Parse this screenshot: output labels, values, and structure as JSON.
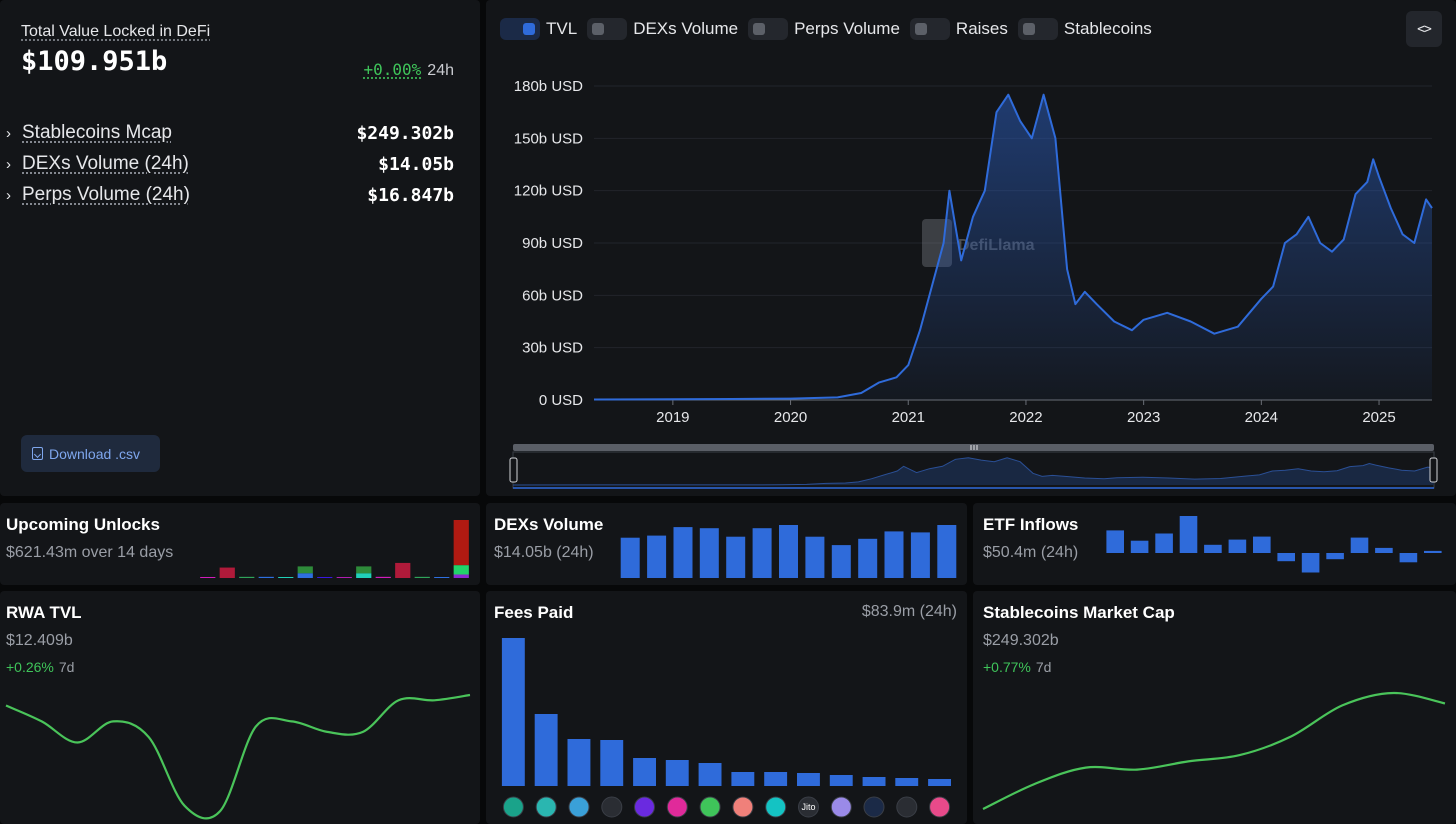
{
  "summary": {
    "title": "Total Value Locked in DeFi",
    "value": "$109.951b",
    "change_pct": "+0.00%",
    "change_period": "24h",
    "metrics": [
      {
        "label": "Stablecoins Mcap",
        "value": "$249.302b"
      },
      {
        "label": "DEXs Volume (24h)",
        "value": "$14.05b"
      },
      {
        "label": "Perps Volume (24h)",
        "value": "$16.847b"
      }
    ],
    "download_label": "Download .csv"
  },
  "main": {
    "legend": [
      {
        "label": "TVL",
        "active": true
      },
      {
        "label": "DEXs Volume",
        "active": false
      },
      {
        "label": "Perps Volume",
        "active": false
      },
      {
        "label": "Raises",
        "active": false
      },
      {
        "label": "Stablecoins",
        "active": false
      }
    ],
    "embed_label": "<>",
    "watermark": "DefiLlama",
    "accent": "#2f6bda"
  },
  "chart_data": [
    {
      "type": "area",
      "series": [
        {
          "name": "TVL"
        }
      ],
      "y_tick_labels": [
        "0 USD",
        "30b USD",
        "60b USD",
        "90b USD",
        "120b USD",
        "150b USD",
        "180b USD"
      ],
      "ylim": [
        0,
        180
      ],
      "x_tick_labels": [
        "2019",
        "2020",
        "2021",
        "2022",
        "2023",
        "2024",
        "2025"
      ],
      "x": [
        2018.33,
        2019.0,
        2019.5,
        2020.0,
        2020.4,
        2020.6,
        2020.75,
        2020.9,
        2021.0,
        2021.1,
        2021.2,
        2021.3,
        2021.35,
        2021.45,
        2021.55,
        2021.65,
        2021.75,
        2021.85,
        2021.95,
        2022.05,
        2022.15,
        2022.25,
        2022.35,
        2022.42,
        2022.5,
        2022.6,
        2022.75,
        2022.9,
        2023.0,
        2023.2,
        2023.4,
        2023.6,
        2023.8,
        2024.0,
        2024.1,
        2024.2,
        2024.3,
        2024.4,
        2024.5,
        2024.6,
        2024.7,
        2024.8,
        2024.9,
        2024.95,
        2025.0,
        2025.1,
        2025.2,
        2025.3,
        2025.4,
        2025.45
      ],
      "y": [
        0.3,
        0.4,
        0.6,
        0.8,
        1.5,
        4,
        10,
        13,
        20,
        40,
        65,
        90,
        120,
        80,
        105,
        120,
        165,
        175,
        160,
        150,
        175,
        150,
        75,
        55,
        62,
        55,
        45,
        40,
        46,
        50,
        45,
        38,
        42,
        58,
        65,
        90,
        95,
        105,
        90,
        85,
        92,
        118,
        125,
        138,
        128,
        110,
        95,
        90,
        115,
        110
      ]
    },
    {
      "type": "bar",
      "title": "Upcoming Unlocks",
      "subtitle": "$621.43m over 14 days",
      "values": [
        0,
        9,
        1,
        1,
        0,
        10,
        0,
        0,
        10,
        1,
        13,
        1,
        0,
        50
      ]
    },
    {
      "type": "bar",
      "title": "DEXs Volume",
      "subtitle": "$14.05b (24h)",
      "values": [
        38,
        40,
        48,
        47,
        39,
        47,
        50,
        39,
        31,
        37,
        44,
        43,
        50
      ]
    },
    {
      "type": "bar",
      "title": "ETF Inflows",
      "subtitle": "$50.4m (24h)",
      "values": [
        22,
        12,
        19,
        36,
        8,
        13,
        16,
        -8,
        -19,
        -6,
        15,
        5,
        -9,
        2
      ]
    },
    {
      "type": "line",
      "title": "RWA TVL",
      "subtitle": "$12.409b",
      "change_pct": "+0.26%",
      "change_period": "7d",
      "values": [
        12.2,
        11.9,
        11.5,
        11.9,
        11.6,
        10.3,
        10.2,
        11.8,
        11.9,
        11.7,
        11.7,
        12.3,
        12.3,
        12.4
      ]
    },
    {
      "type": "bar",
      "title": "Fees Paid",
      "subtitle": "$83.9m (24h)",
      "values": [
        148,
        72,
        47,
        46,
        28,
        26,
        23,
        14,
        14,
        13,
        11,
        9,
        8,
        7
      ]
    },
    {
      "type": "line",
      "title": "Stablecoins Market Cap",
      "subtitle": "$249.302b",
      "change_pct": "+0.77%",
      "change_period": "7d",
      "values": [
        0.0,
        0.6,
        1.0,
        0.95,
        1.15,
        1.3,
        1.75,
        2.5,
        2.8,
        2.55
      ]
    }
  ],
  "icons": {
    "unlocks_colors": [
      "#d21dbb",
      "#b01a3a",
      "#2fa35a",
      "#2e6fe0",
      "#20d0b8",
      "#2e8b3a",
      "#3a17e0",
      "#b01db0",
      "#8a1a2a"
    ],
    "protocols": [
      "tether-icon",
      "pancakeswap-icon",
      "lido-icon",
      "hyperliquid-icon",
      "phantom-icon",
      "pumpfun-icon",
      "pump-icon",
      "raydium-icon",
      "meteora-icon",
      "jito-icon",
      "fluid-icon",
      "aave-icon",
      "jupiter-icon",
      "circle-icon"
    ],
    "jito_label": "Jito"
  }
}
